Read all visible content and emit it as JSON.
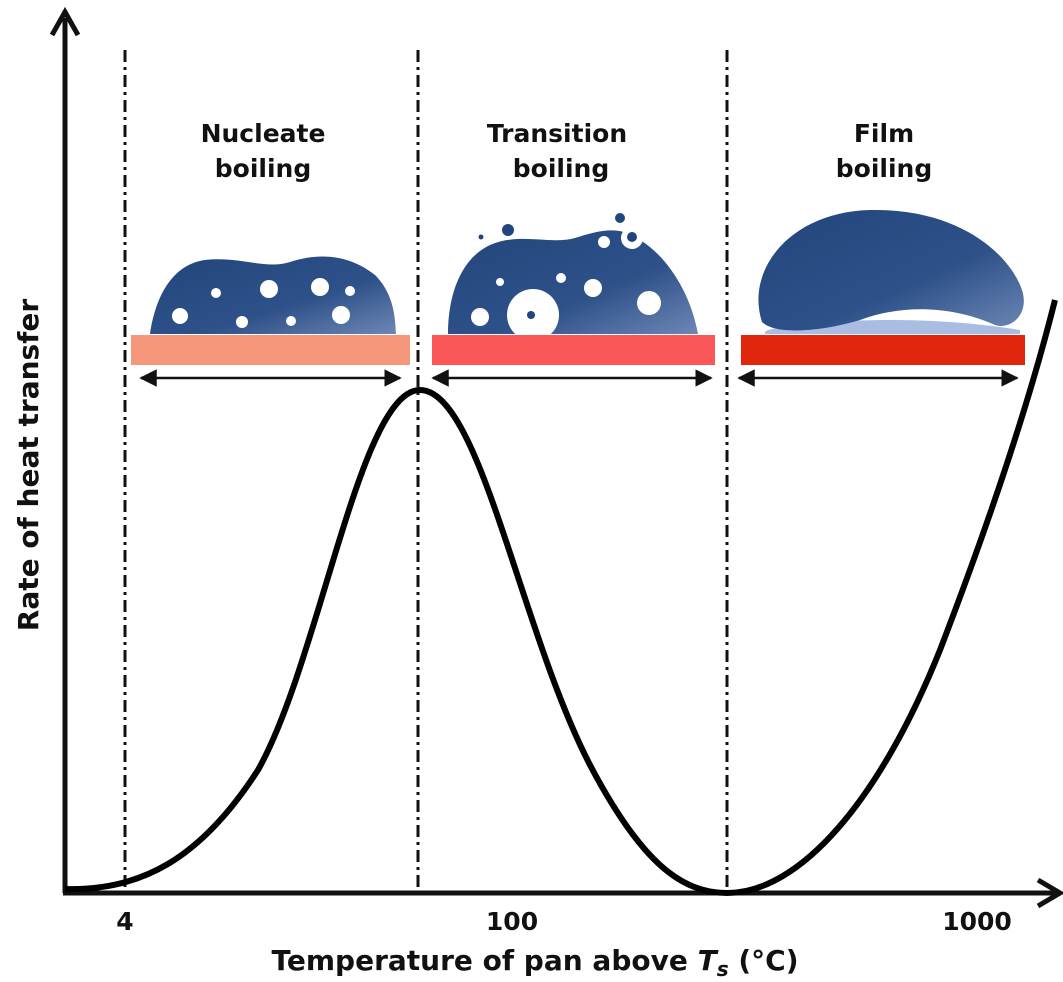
{
  "y_axis": {
    "title": "Rate of heat transfer"
  },
  "x_axis": {
    "title": {
      "text": "Temperature of pan above",
      "symbol": "T",
      "subscript": "s",
      "unit": "(°C)"
    },
    "ticks": [
      "4",
      "100",
      "1000"
    ]
  },
  "regions": [
    {
      "line1": "Nucleate",
      "line2": "boiling"
    },
    {
      "line1": "Transition",
      "line2": "boiling"
    },
    {
      "line1": "Film",
      "line2": "boiling"
    }
  ]
}
